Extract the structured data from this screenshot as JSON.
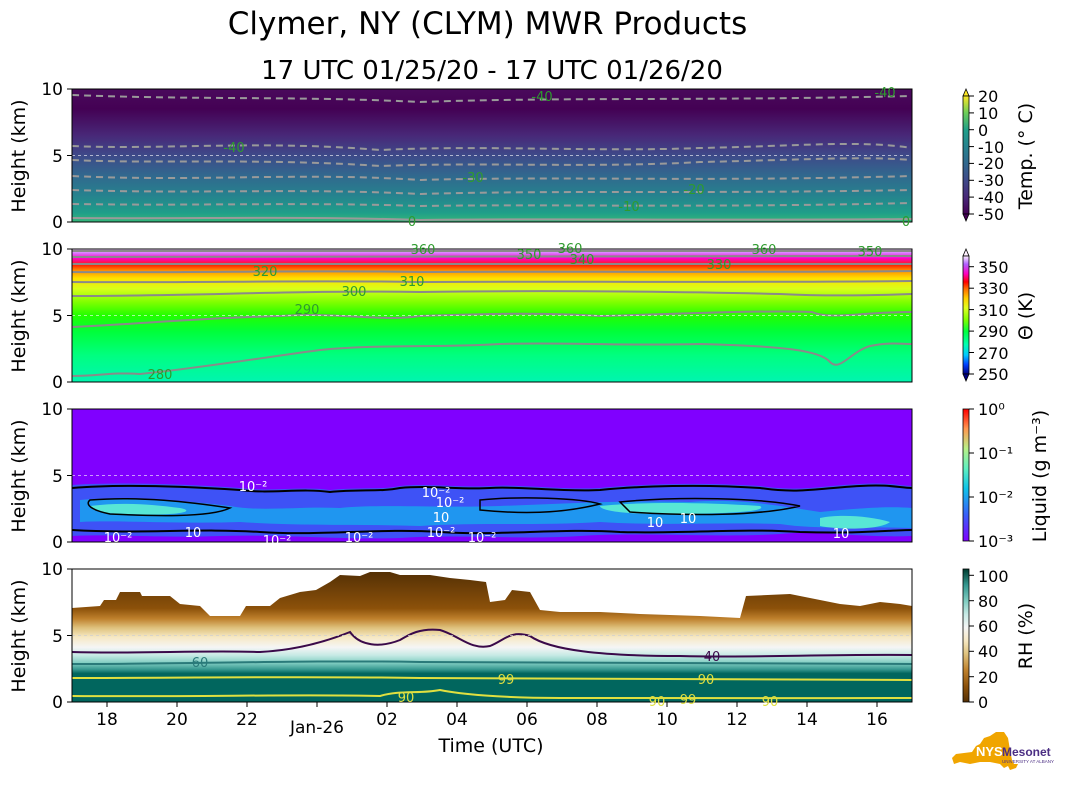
{
  "title": "Clymer, NY (CLYM) MWR Products",
  "subtitle": "17 UTC 01/25/20 - 17 UTC 01/26/20",
  "xlabel": "Time (UTC)",
  "x_ticks": [
    "18",
    "20",
    "22",
    "Jan-26",
    "02",
    "04",
    "06",
    "08",
    "10",
    "12",
    "14",
    "16"
  ],
  "logo": {
    "text": "NYS Mesonet",
    "sub": "UNIVERSITY AT ALBANY",
    "colors": {
      "state": "#f0a500",
      "text": "#4b2e83"
    }
  },
  "chart_data": [
    {
      "type": "heatmap",
      "name": "temperature",
      "ylabel": "Height (km)",
      "yticks": [
        "0",
        "5",
        "10"
      ],
      "ylim": [
        0,
        10
      ],
      "xlim_hours": [
        17,
        41
      ],
      "colorbar": {
        "label": "Temp. (° C)",
        "range": [
          -50,
          20
        ],
        "ticks": [
          "20",
          "10",
          "0",
          "-10",
          "-20",
          "-30",
          "-40",
          "-50"
        ],
        "colormap": "viridis"
      },
      "contour_labels": [
        "-40",
        "-40",
        "-40",
        "-30",
        "-20",
        "-10",
        "0",
        "0"
      ]
    },
    {
      "type": "heatmap",
      "name": "potential-temperature",
      "ylabel": "Height (km)",
      "yticks": [
        "0",
        "5",
        "10"
      ],
      "ylim": [
        0,
        10
      ],
      "colorbar": {
        "label": "Θ (K)",
        "range": [
          250,
          360
        ],
        "ticks": [
          "350",
          "330",
          "310",
          "290",
          "270",
          "250"
        ],
        "colormap": "gist_ncar"
      },
      "contour_labels": [
        "280",
        "290",
        "300",
        "310",
        "320",
        "330",
        "340",
        "350",
        "360",
        "360",
        "360",
        "350"
      ]
    },
    {
      "type": "heatmap",
      "name": "liquid",
      "ylabel": "Height (km)",
      "yticks": [
        "0",
        "5",
        "10"
      ],
      "ylim": [
        0,
        10
      ],
      "colorbar": {
        "label": "Liquid (g m⁻³)",
        "scale": "log",
        "range": [
          0.001,
          1
        ],
        "ticks": [
          "10⁰",
          "10⁻¹",
          "10⁻²",
          "10⁻³"
        ],
        "colormap": "rainbow"
      },
      "contour_labels": [
        "10⁻²",
        "10⁻²",
        "10⁻²",
        "10⁻²",
        "10⁻²",
        "10⁻²",
        "10⁻²",
        "10",
        "10",
        "10",
        "10⁻²",
        "10",
        "10"
      ]
    },
    {
      "type": "heatmap",
      "name": "relative-humidity",
      "ylabel": "Height (km)",
      "yticks": [
        "0",
        "5",
        "10"
      ],
      "ylim": [
        0,
        10
      ],
      "colorbar": {
        "label": "RH (%)",
        "range": [
          0,
          105
        ],
        "ticks": [
          "100",
          "80",
          "60",
          "40",
          "20",
          "0"
        ],
        "colormap": "BrBG"
      },
      "contour_labels": [
        "60",
        "40",
        "90",
        "99",
        "90",
        "90",
        "99",
        "90"
      ]
    }
  ]
}
